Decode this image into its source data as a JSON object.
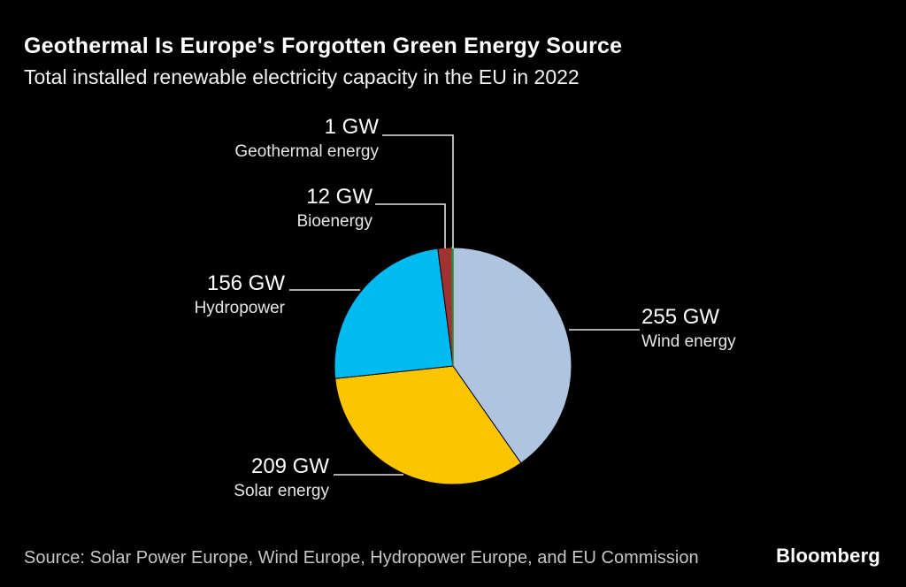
{
  "header": {
    "title": "Geothermal Is Europe's Forgotten Green Energy Source",
    "subtitle": "Total installed renewable electricity capacity in the EU in 2022"
  },
  "footer": {
    "source": "Source: Solar Power Europe, Wind Europe, Hydropower Europe, and EU Commission",
    "brand": "Bloomberg"
  },
  "chart_data": {
    "type": "pie",
    "title": "Total installed renewable electricity capacity in the EU in 2022",
    "unit": "GW",
    "total_value": 633,
    "start_angle_deg": 0,
    "direction": "clockwise",
    "legend_position": "external-labels-with-leader-lines",
    "background_color": "#000000",
    "slices": [
      {
        "name": "Wind energy",
        "value": 255,
        "label": "255 GW",
        "color": "#AFC4DE"
      },
      {
        "name": "Solar energy",
        "value": 209,
        "label": "209 GW",
        "color": "#FDC400"
      },
      {
        "name": "Hydropower",
        "value": 156,
        "label": "156 GW",
        "color": "#00BAF2"
      },
      {
        "name": "Bioenergy",
        "value": 12,
        "label": "12 GW",
        "color": "#9E3331"
      },
      {
        "name": "Geothermal energy",
        "value": 1,
        "label": "1 GW",
        "color": "#35853A"
      }
    ]
  }
}
